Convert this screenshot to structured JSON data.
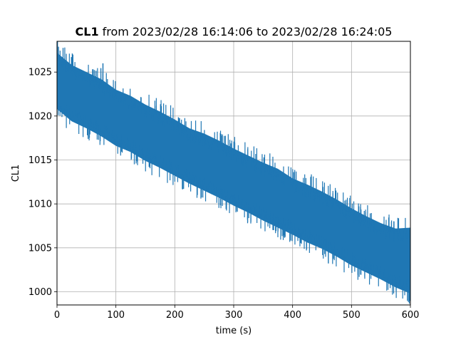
{
  "chart_data": {
    "type": "line",
    "title": {
      "name": "CL1",
      "text": "from 2023/02/28 16:14:06 to 2023/02/28 16:24:05"
    },
    "xlabel": "time (s)",
    "ylabel": "CL1",
    "xlim": [
      0,
      600
    ],
    "ylim": [
      998.5,
      1028.5
    ],
    "xticks": [
      0,
      100,
      200,
      300,
      400,
      500,
      600
    ],
    "yticks": [
      1000,
      1005,
      1010,
      1015,
      1020,
      1025
    ],
    "grid": true,
    "legend": "none",
    "series_color": "#1f77b4",
    "series": [
      {
        "x": [
          0,
          25,
          50,
          75,
          100,
          125,
          150,
          175,
          200,
          225,
          250,
          275,
          300,
          325,
          350,
          375,
          400,
          425,
          450,
          475,
          500,
          525,
          550,
          575,
          600
        ],
        "upper": [
          1027.2,
          1025.8,
          1025.0,
          1024.2,
          1023.0,
          1022.3,
          1021.3,
          1020.5,
          1019.6,
          1018.6,
          1018.0,
          1017.2,
          1016.3,
          1015.5,
          1014.7,
          1014.0,
          1012.9,
          1012.2,
          1011.4,
          1010.5,
          1009.5,
          1008.6,
          1007.8,
          1007.2,
          1007.3
        ],
        "lower": [
          1020.8,
          1019.4,
          1018.6,
          1017.7,
          1016.6,
          1015.9,
          1014.9,
          1014.1,
          1013.2,
          1012.3,
          1011.5,
          1010.7,
          1009.8,
          1009.0,
          1008.1,
          1007.3,
          1006.5,
          1005.6,
          1004.9,
          1004.0,
          1003.0,
          1002.2,
          1001.4,
          1000.5,
          999.8
        ],
        "spike": {
          "x": 78,
          "y": 1026.0
        }
      }
    ]
  }
}
